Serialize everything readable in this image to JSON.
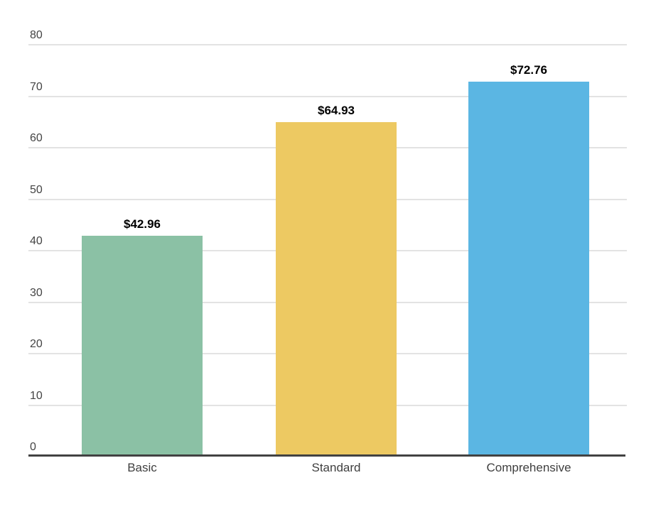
{
  "chart_data": {
    "type": "bar",
    "title": "",
    "xlabel": "",
    "ylabel": "",
    "categories": [
      "Basic",
      "Standard",
      "Comprehensive"
    ],
    "values": [
      42.96,
      64.93,
      72.76
    ],
    "value_labels": [
      "$42.96",
      "$64.93",
      "$72.76"
    ],
    "bar_colors": [
      "#8bc1a5",
      "#edc962",
      "#5bb6e3"
    ],
    "ylim": [
      0,
      80
    ],
    "yticks": [
      0,
      10,
      20,
      30,
      40,
      50,
      60,
      70,
      80
    ],
    "grid": true,
    "legend": "none",
    "colors": {
      "background": "#ffffff",
      "gridline": "#e3e3e3",
      "baseline": "#424242",
      "tick_label": "#444444",
      "category_label": "#3f3f3f",
      "value_label": "#000000"
    }
  }
}
